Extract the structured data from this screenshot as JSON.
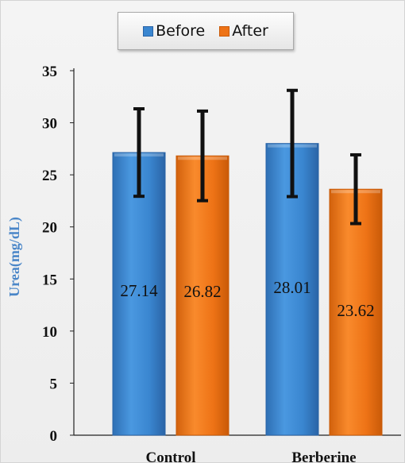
{
  "chart_data": {
    "type": "bar",
    "categories": [
      "Control",
      "Berberine"
    ],
    "series": [
      {
        "name": "Before",
        "values": [
          27.14,
          28.01
        ],
        "error": [
          4.2,
          5.1
        ],
        "color": "#3a86d0"
      },
      {
        "name": "After",
        "values": [
          26.82,
          23.62
        ],
        "error": [
          4.3,
          3.3
        ],
        "color": "#ee7316"
      }
    ],
    "data_labels": [
      "27.14",
      "26.82",
      "28.01",
      "23.62"
    ],
    "title": "",
    "xlabel": "",
    "ylabel": "Urea(mg/dL)",
    "ylim": [
      0,
      35
    ],
    "yticks": [
      0,
      5,
      10,
      15,
      20,
      25,
      30,
      35
    ],
    "grid": false,
    "legend_position": "top",
    "ylabel_color": "#4a86c8"
  }
}
